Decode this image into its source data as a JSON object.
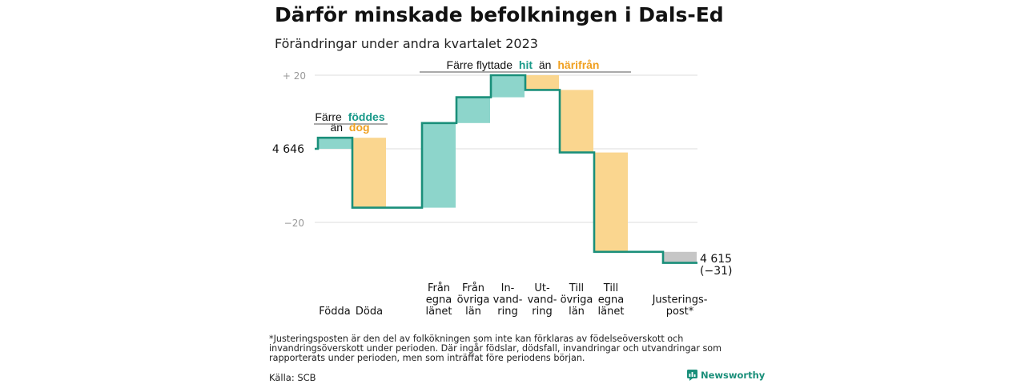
{
  "title": "Därför minskade befolkningen i Dals-Ed",
  "subtitle": "Förändringar under andra kvartalet 2023",
  "annotations": {
    "births": {
      "line1_prefix": "Färre",
      "line1_highlight": "föddes",
      "line2_prefix": "än",
      "line2_highlight": "dog"
    },
    "migration": {
      "prefix": "Färre flyttade",
      "highlight1": "hit",
      "middle": "än",
      "highlight2": "härifrån"
    }
  },
  "start_label": "4 646",
  "end_label": "4 615",
  "end_change_label": "(−31)",
  "footnote": "*Justeringsposten är den del av folkökningen som inte kan förklaras av födelseöverskott och invandringsöverskott under perioden. Där ingår födslar, dödsfall, invandringar och utvandringar som rapporterats under perioden, men som inträffat före periodens början.",
  "source": "Källa: SCB",
  "brand": "Newsworthy",
  "colors": {
    "increase": "#8dd5cb",
    "decrease": "#fad68f",
    "adjustment": "#c6c6c6",
    "line": "#1a8f7a",
    "teal_text": "#1a9a8a",
    "orange_text": "#f0a020"
  },
  "chart_data": {
    "type": "waterfall",
    "title": "Därför minskade befolkningen i Dals-Ed",
    "subtitle": "Förändringar under andra kvartalet 2023",
    "start_value": 4646,
    "end_value": 4615,
    "total_change": -31,
    "y_tick_labels": [
      "+ 20",
      "4 646",
      "−20"
    ],
    "ylim": [
      -32,
      22
    ],
    "grid": true,
    "steps": [
      {
        "category": [
          "Födda"
        ],
        "change": 3,
        "kind": "increase"
      },
      {
        "category": [
          "Döda"
        ],
        "change": -19,
        "kind": "decrease"
      },
      {
        "category": [
          "Från",
          "egna",
          "länet"
        ],
        "change": 23,
        "kind": "increase"
      },
      {
        "category": [
          "Från",
          "övriga",
          "län"
        ],
        "change": 7,
        "kind": "increase"
      },
      {
        "category": [
          "In-",
          "vand-",
          "ring"
        ],
        "change": 6,
        "kind": "increase"
      },
      {
        "category": [
          "Ut-",
          "vand-",
          "ring"
        ],
        "change": -4,
        "kind": "decrease"
      },
      {
        "category": [
          "Till",
          "övriga",
          "län"
        ],
        "change": -17,
        "kind": "decrease"
      },
      {
        "category": [
          "Till",
          "egna",
          "länet"
        ],
        "change": -27,
        "kind": "decrease"
      },
      {
        "category": [
          "Justerings-",
          "post*"
        ],
        "change": -3,
        "kind": "adjustment"
      }
    ]
  }
}
